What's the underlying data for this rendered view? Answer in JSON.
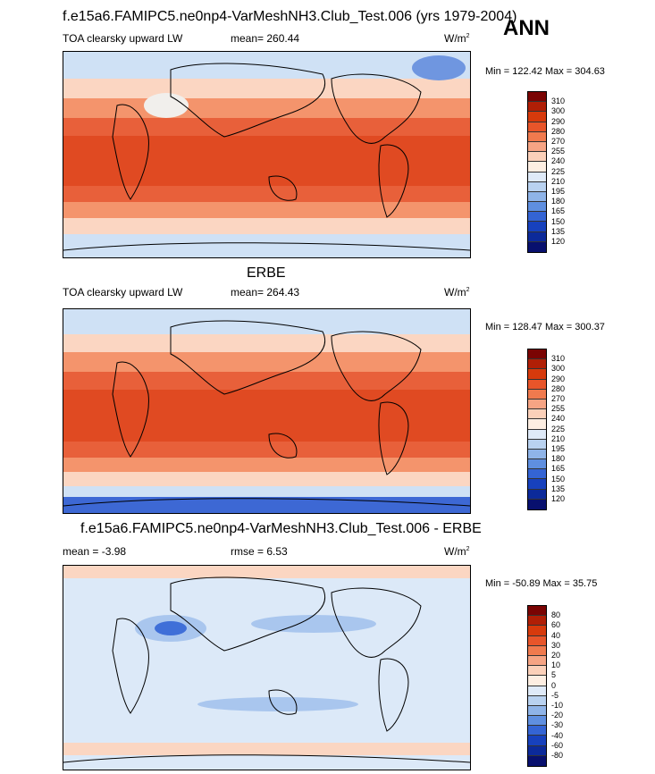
{
  "header": {
    "main_title": "f.e15a6.FAMIPC5.ne0np4-VarMeshNH3.Club_Test.006 (yrs 1979-2004)",
    "season": "ANN"
  },
  "panels": [
    {
      "id": "model",
      "title": "",
      "left_label": "TOA clearsky upward LW",
      "center_label": "mean= 260.44",
      "units": "W/m",
      "units_sup": "2",
      "minmax": "Min = 122.42 Max = 304.63",
      "levels": [
        "310",
        "300",
        "290",
        "280",
        "270",
        "255",
        "240",
        "225",
        "210",
        "195",
        "180",
        "165",
        "150",
        "135",
        "120"
      ]
    },
    {
      "id": "obs",
      "title": "ERBE",
      "left_label": "TOA clearsky upward LW",
      "center_label": "mean= 264.43",
      "units": "W/m",
      "units_sup": "2",
      "minmax": "Min = 128.47 Max = 300.37",
      "levels": [
        "310",
        "300",
        "290",
        "280",
        "270",
        "255",
        "240",
        "225",
        "210",
        "195",
        "180",
        "165",
        "150",
        "135",
        "120"
      ]
    },
    {
      "id": "diff",
      "title": "f.e15a6.FAMIPC5.ne0np4-VarMeshNH3.Club_Test.006 - ERBE",
      "left_label": "mean =  -3.98",
      "center_label": "rmse =   6.53",
      "units": "W/m",
      "units_sup": "2",
      "minmax": "Min = -50.89 Max =  35.75",
      "levels": [
        "80",
        "60",
        "40",
        "30",
        "20",
        "10",
        "5",
        "0",
        "-5",
        "-10",
        "-20",
        "-30",
        "-40",
        "-60",
        "-80"
      ]
    }
  ],
  "colors": {
    "colorbar": [
      "#7a0403",
      "#b01f06",
      "#d73a0c",
      "#e8552a",
      "#f07a4e",
      "#f6a484",
      "#fbd0b9",
      "#fdeee2",
      "#dfeaf8",
      "#b9d2f0",
      "#8fb4e8",
      "#5f8fe0",
      "#3464d4",
      "#1741bd",
      "#0c2a9a",
      "#08106e"
    ],
    "model_map": {
      "tropics": "#e04a22",
      "sub": "#e8603a",
      "mid": "#f4946c",
      "high": "#fbd6c2",
      "polar": "#cfe1f5",
      "ice": "#6f96e0",
      "sahara": "#f1efec"
    },
    "obs_map": {
      "tropics": "#e04a22",
      "sub": "#e8603a",
      "mid": "#f4946c",
      "high": "#fbd6c2",
      "polar": "#cfe1f5",
      "ice": "#3d68d4"
    },
    "diff_map": {
      "base": "#dce9f8",
      "pos": "#fbd6c2",
      "neg": "#a9c6ee",
      "strong_neg": "#3f6fd8"
    }
  }
}
